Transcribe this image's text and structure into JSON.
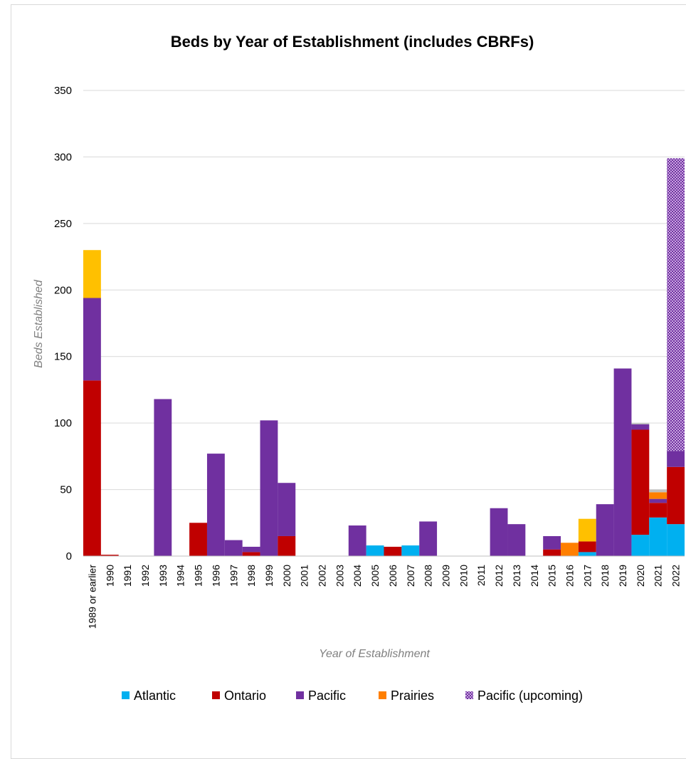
{
  "chart_data": {
    "type": "bar",
    "stacked": true,
    "title": "Beds by Year of Establishment (includes CBRFs)",
    "xlabel": "Year of Establishment",
    "ylabel": "Beds Established",
    "ylim": [
      0,
      350
    ],
    "yticks": [
      0,
      50,
      100,
      150,
      200,
      250,
      300,
      350
    ],
    "grid": true,
    "legend_position": "bottom",
    "categories": [
      "1989 or earlier",
      "1990",
      "1991",
      "1992",
      "1993",
      "1994",
      "1995",
      "1996",
      "1997",
      "1998",
      "1999",
      "2000",
      "2001",
      "2002",
      "2003",
      "2004",
      "2005",
      "2006",
      "2007",
      "2008",
      "2009",
      "2010",
      "2011",
      "2012",
      "2013",
      "2014",
      "2015",
      "2016",
      "2017",
      "2018",
      "2019",
      "2020",
      "2021",
      "2022"
    ],
    "series": [
      {
        "name": "Atlantic",
        "color": "#00b0f0",
        "pattern": false,
        "values": [
          0,
          0,
          0,
          0,
          0,
          0,
          0,
          0,
          0,
          0,
          0,
          0,
          0,
          0,
          0,
          0,
          8,
          0,
          8,
          0,
          0,
          0,
          0,
          0,
          0,
          0,
          0,
          0,
          3,
          0,
          0,
          16,
          29,
          24
        ]
      },
      {
        "name": "Ontario",
        "color": "#c00000",
        "pattern": false,
        "values": [
          132,
          1,
          0,
          0,
          0,
          0,
          25,
          0,
          0,
          3,
          0,
          15,
          0,
          0,
          0,
          0,
          0,
          7,
          0,
          0,
          0,
          0,
          0,
          0,
          0,
          0,
          5,
          0,
          8,
          0,
          0,
          79,
          11,
          43
        ]
      },
      {
        "name": "Pacific",
        "color": "#7030a0",
        "pattern": false,
        "values": [
          62,
          0,
          0,
          0,
          118,
          0,
          0,
          77,
          12,
          4,
          102,
          40,
          0,
          0,
          0,
          23,
          0,
          0,
          0,
          26,
          0,
          0,
          0,
          36,
          24,
          0,
          10,
          0,
          0,
          39,
          141,
          4,
          3,
          12
        ]
      },
      {
        "name": "Prairies",
        "color": "#ff7f00",
        "pattern": false,
        "values": [
          0,
          0,
          0,
          0,
          0,
          0,
          0,
          0,
          0,
          0,
          0,
          0,
          0,
          0,
          0,
          0,
          0,
          0,
          0,
          0,
          0,
          0,
          0,
          0,
          0,
          0,
          0,
          10,
          0,
          0,
          0,
          0,
          5,
          0
        ]
      },
      {
        "name": "",
        "color": "#ffc000",
        "pattern": false,
        "values": [
          36,
          0,
          0,
          0,
          0,
          0,
          0,
          0,
          0,
          0,
          0,
          0,
          0,
          0,
          0,
          0,
          0,
          0,
          0,
          0,
          0,
          0,
          0,
          0,
          0,
          0,
          0,
          0,
          17,
          0,
          0,
          0,
          0,
          0
        ]
      },
      {
        "name": "",
        "color": "#c0c0c0",
        "pattern": false,
        "values": [
          0,
          0,
          0,
          0,
          0,
          0,
          0,
          0,
          0,
          0,
          0,
          0,
          0,
          0,
          0,
          0,
          0,
          0,
          0,
          0,
          0,
          0,
          0,
          0,
          0,
          0,
          0,
          0,
          0,
          0,
          0,
          1,
          2,
          0
        ]
      },
      {
        "name": "Pacific (upcoming)",
        "color": "#7030a0",
        "pattern": true,
        "values": [
          0,
          0,
          0,
          0,
          0,
          0,
          0,
          0,
          0,
          0,
          0,
          0,
          0,
          0,
          0,
          0,
          0,
          0,
          0,
          0,
          0,
          0,
          0,
          0,
          0,
          0,
          0,
          0,
          0,
          0,
          0,
          0,
          0,
          220
        ]
      }
    ],
    "legend": [
      "Atlantic",
      "Ontario",
      "Pacific",
      "Prairies",
      "Pacific (upcoming)"
    ]
  }
}
